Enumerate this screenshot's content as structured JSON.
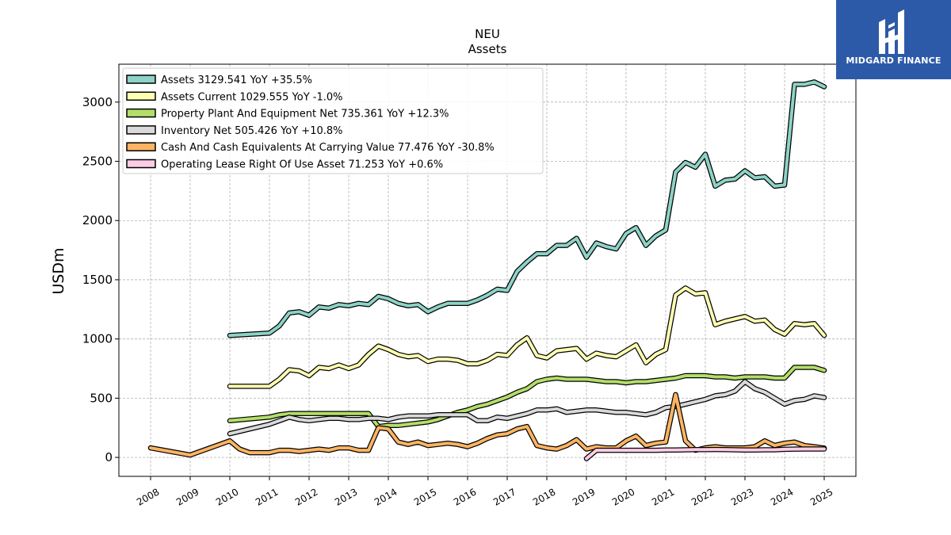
{
  "chart_data": {
    "type": "line",
    "title": "NEU",
    "subtitle": "Assets",
    "ylabel": "USDm",
    "xlabel": "",
    "xlim": [
      2007.2,
      2025.8
    ],
    "ylim": [
      -160,
      3320
    ],
    "x_ticks": [
      "2008",
      "2009",
      "2010",
      "2011",
      "2012",
      "2013",
      "2014",
      "2015",
      "2016",
      "2017",
      "2018",
      "2019",
      "2020",
      "2021",
      "2022",
      "2023",
      "2024",
      "2025"
    ],
    "y_ticks": [
      "0",
      "500",
      "1000",
      "1500",
      "2000",
      "2500",
      "3000"
    ],
    "grid": true,
    "legend_position": "top-left",
    "series": [
      {
        "name": "Assets",
        "legend": "Assets  3129.541 YoY +35.5%",
        "color": "#8dd3c7",
        "x": [
          2010.0,
          2011.0,
          2011.25,
          2011.5,
          2011.75,
          2012.0,
          2012.25,
          2012.5,
          2012.75,
          2013.0,
          2013.25,
          2013.5,
          2013.75,
          2014.0,
          2014.25,
          2014.5,
          2014.75,
          2015.0,
          2015.25,
          2015.5,
          2015.75,
          2016.0,
          2016.25,
          2016.5,
          2016.75,
          2017.0,
          2017.25,
          2017.5,
          2017.75,
          2018.0,
          2018.25,
          2018.5,
          2018.75,
          2019.0,
          2019.25,
          2019.5,
          2019.75,
          2020.0,
          2020.25,
          2020.5,
          2020.75,
          2021.0,
          2021.25,
          2021.5,
          2021.75,
          2022.0,
          2022.25,
          2022.5,
          2022.75,
          2023.0,
          2023.25,
          2023.5,
          2023.75,
          2024.0,
          2024.25,
          2024.5,
          2024.75,
          2025.0
        ],
        "y": [
          1030,
          1050,
          1110,
          1220,
          1230,
          1200,
          1270,
          1260,
          1290,
          1280,
          1300,
          1290,
          1360,
          1340,
          1300,
          1280,
          1290,
          1230,
          1270,
          1300,
          1300,
          1300,
          1330,
          1370,
          1420,
          1410,
          1570,
          1650,
          1720,
          1720,
          1790,
          1790,
          1850,
          1690,
          1810,
          1780,
          1760,
          1890,
          1940,
          1790,
          1870,
          1920,
          2410,
          2490,
          2450,
          2560,
          2290,
          2340,
          2350,
          2420,
          2360,
          2370,
          2290,
          2300,
          3150,
          3150,
          3170,
          3130
        ]
      },
      {
        "name": "Assets Current",
        "legend": "Assets Current  1029.555 YoY -1.0%",
        "color": "#ffffb3",
        "x": [
          2010.0,
          2011.0,
          2011.25,
          2011.5,
          2011.75,
          2012.0,
          2012.25,
          2012.5,
          2012.75,
          2013.0,
          2013.25,
          2013.5,
          2013.75,
          2014.0,
          2014.25,
          2014.5,
          2014.75,
          2015.0,
          2015.25,
          2015.5,
          2015.75,
          2016.0,
          2016.25,
          2016.5,
          2016.75,
          2017.0,
          2017.25,
          2017.5,
          2017.75,
          2018.0,
          2018.25,
          2018.5,
          2018.75,
          2019.0,
          2019.25,
          2019.5,
          2019.75,
          2020.0,
          2020.25,
          2020.5,
          2020.75,
          2021.0,
          2021.25,
          2021.5,
          2021.75,
          2022.0,
          2022.25,
          2022.5,
          2022.75,
          2023.0,
          2023.25,
          2023.5,
          2023.75,
          2024.0,
          2024.25,
          2024.5,
          2024.75,
          2025.0
        ],
        "y": [
          600,
          600,
          660,
          740,
          730,
          690,
          760,
          750,
          780,
          750,
          780,
          870,
          940,
          910,
          870,
          850,
          860,
          810,
          830,
          830,
          820,
          790,
          790,
          820,
          870,
          860,
          950,
          1010,
          860,
          840,
          900,
          910,
          920,
          830,
          880,
          860,
          850,
          900,
          950,
          800,
          870,
          910,
          1370,
          1430,
          1380,
          1390,
          1120,
          1150,
          1170,
          1190,
          1150,
          1160,
          1080,
          1040,
          1130,
          1120,
          1130,
          1030
        ]
      },
      {
        "name": "Property Plant And Equipment Net",
        "legend": "Property Plant And Equipment Net  735.361 YoY +12.3%",
        "color": "#b3de69",
        "x": [
          2010.0,
          2011.0,
          2011.25,
          2011.5,
          2011.75,
          2012.0,
          2012.25,
          2012.5,
          2012.75,
          2013.0,
          2013.25,
          2013.5,
          2013.75,
          2014.0,
          2014.25,
          2014.5,
          2014.75,
          2015.0,
          2015.25,
          2015.5,
          2015.75,
          2016.0,
          2016.25,
          2016.5,
          2016.75,
          2017.0,
          2017.25,
          2017.5,
          2017.75,
          2018.0,
          2018.25,
          2018.5,
          2018.75,
          2019.0,
          2019.25,
          2019.5,
          2019.75,
          2020.0,
          2020.25,
          2020.5,
          2020.75,
          2021.0,
          2021.25,
          2021.5,
          2021.75,
          2022.0,
          2022.25,
          2022.5,
          2022.75,
          2023.0,
          2023.25,
          2023.5,
          2023.75,
          2024.0,
          2024.25,
          2024.5,
          2024.75,
          2025.0
        ],
        "y": [
          310,
          340,
          360,
          370,
          370,
          370,
          370,
          370,
          370,
          370,
          370,
          370,
          260,
          270,
          270,
          280,
          290,
          300,
          320,
          350,
          380,
          400,
          430,
          450,
          480,
          510,
          550,
          580,
          640,
          660,
          670,
          660,
          660,
          660,
          650,
          640,
          640,
          630,
          640,
          640,
          650,
          660,
          670,
          690,
          690,
          690,
          680,
          680,
          670,
          680,
          680,
          680,
          670,
          670,
          760,
          760,
          760,
          735
        ]
      },
      {
        "name": "Inventory Net",
        "legend": "Inventory Net  505.426 YoY +10.8%",
        "color": "#d9d9d9",
        "x": [
          2010.0,
          2011.0,
          2011.25,
          2011.5,
          2011.75,
          2012.0,
          2012.25,
          2012.5,
          2012.75,
          2013.0,
          2013.25,
          2013.5,
          2013.75,
          2014.0,
          2014.25,
          2014.5,
          2014.75,
          2015.0,
          2015.25,
          2015.5,
          2015.75,
          2016.0,
          2016.25,
          2016.5,
          2016.75,
          2017.0,
          2017.25,
          2017.5,
          2017.75,
          2018.0,
          2018.25,
          2018.5,
          2018.75,
          2019.0,
          2019.25,
          2019.5,
          2019.75,
          2020.0,
          2020.25,
          2020.5,
          2020.75,
          2021.0,
          2021.25,
          2021.5,
          2021.75,
          2022.0,
          2022.25,
          2022.5,
          2022.75,
          2023.0,
          2023.25,
          2023.5,
          2023.75,
          2024.0,
          2024.25,
          2024.5,
          2024.75,
          2025.0
        ],
        "y": [
          200,
          280,
          310,
          340,
          320,
          310,
          320,
          330,
          330,
          320,
          320,
          330,
          330,
          320,
          340,
          350,
          350,
          350,
          360,
          360,
          360,
          360,
          310,
          310,
          340,
          330,
          350,
          370,
          400,
          400,
          410,
          380,
          390,
          400,
          400,
          390,
          380,
          380,
          370,
          360,
          380,
          420,
          430,
          450,
          470,
          490,
          520,
          530,
          560,
          640,
          580,
          550,
          500,
          450,
          480,
          490,
          520,
          505
        ]
      },
      {
        "name": "Cash And Cash Equivalents At Carrying Value",
        "legend": "Cash And Cash Equivalents At Carrying Value  77.476 YoY -30.8%",
        "color": "#fdb462",
        "x": [
          2008.0,
          2009.0,
          2010.0,
          2010.25,
          2010.5,
          2011.0,
          2011.25,
          2011.5,
          2011.75,
          2012.0,
          2012.25,
          2012.5,
          2012.75,
          2013.0,
          2013.25,
          2013.5,
          2013.75,
          2014.0,
          2014.25,
          2014.5,
          2014.75,
          2015.0,
          2015.25,
          2015.5,
          2015.75,
          2016.0,
          2016.25,
          2016.5,
          2016.75,
          2017.0,
          2017.25,
          2017.5,
          2017.75,
          2018.0,
          2018.25,
          2018.5,
          2018.75,
          2019.0,
          2019.25,
          2019.5,
          2019.75,
          2020.0,
          2020.25,
          2020.5,
          2020.75,
          2021.0,
          2021.25,
          2021.5,
          2021.75,
          2022.0,
          2022.25,
          2022.5,
          2022.75,
          2023.0,
          2023.25,
          2023.5,
          2023.75,
          2024.0,
          2024.25,
          2024.5,
          2024.75,
          2025.0
        ],
        "y": [
          80,
          20,
          140,
          70,
          40,
          40,
          60,
          60,
          50,
          60,
          70,
          60,
          80,
          80,
          60,
          60,
          250,
          240,
          130,
          110,
          130,
          100,
          110,
          120,
          110,
          90,
          120,
          160,
          190,
          200,
          240,
          260,
          100,
          80,
          70,
          100,
          150,
          70,
          90,
          80,
          80,
          140,
          180,
          100,
          120,
          130,
          530,
          140,
          60,
          80,
          90,
          80,
          80,
          80,
          90,
          140,
          100,
          120,
          130,
          100,
          90,
          78
        ]
      },
      {
        "name": "Operating Lease Right Of Use Asset",
        "legend": "Operating Lease Right Of Use Asset  71.253 YoY +0.6%",
        "color": "#fccde5",
        "x": [
          2019.0,
          2019.25,
          2019.5,
          2019.75,
          2020.0,
          2020.25,
          2020.5,
          2020.75,
          2021.0,
          2021.25,
          2021.5,
          2021.75,
          2022.0,
          2022.25,
          2022.5,
          2022.75,
          2023.0,
          2023.25,
          2023.5,
          2023.75,
          2024.0,
          2024.25,
          2024.5,
          2024.75,
          2025.0
        ],
        "y": [
          -10,
          60,
          60,
          60,
          60,
          60,
          60,
          60,
          62,
          63,
          64,
          66,
          66,
          67,
          66,
          64,
          63,
          62,
          64,
          64,
          68,
          70,
          71,
          71,
          71
        ]
      }
    ]
  },
  "logo": {
    "text": "MIDGARD FINANCE"
  }
}
